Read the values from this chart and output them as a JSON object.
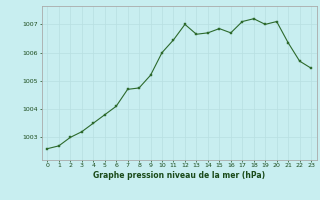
{
  "x": [
    0,
    1,
    2,
    3,
    4,
    5,
    6,
    7,
    8,
    9,
    10,
    11,
    12,
    13,
    14,
    15,
    16,
    17,
    18,
    19,
    20,
    21,
    22,
    23
  ],
  "y": [
    1002.6,
    1002.7,
    1003.0,
    1003.2,
    1003.5,
    1003.8,
    1004.1,
    1004.7,
    1004.75,
    1005.2,
    1006.0,
    1006.45,
    1007.0,
    1006.65,
    1006.7,
    1006.85,
    1006.7,
    1007.1,
    1007.2,
    1007.0,
    1007.1,
    1006.35,
    1005.7,
    1005.45
  ],
  "line_color": "#2d6a2d",
  "marker_color": "#2d6a2d",
  "bg_color": "#c8eef0",
  "grid_color": "#b8dfe1",
  "border_color": "#aaaaaa",
  "xlabel": "Graphe pression niveau de la mer (hPa)",
  "tick_color": "#1a4a1a",
  "ylim": [
    1002.2,
    1007.65
  ],
  "yticks": [
    1003,
    1004,
    1005,
    1006,
    1007
  ],
  "xlim": [
    -0.5,
    23.5
  ],
  "xticks": [
    0,
    1,
    2,
    3,
    4,
    5,
    6,
    7,
    8,
    9,
    10,
    11,
    12,
    13,
    14,
    15,
    16,
    17,
    18,
    19,
    20,
    21,
    22,
    23
  ],
  "figsize": [
    3.2,
    2.0
  ],
  "dpi": 100
}
